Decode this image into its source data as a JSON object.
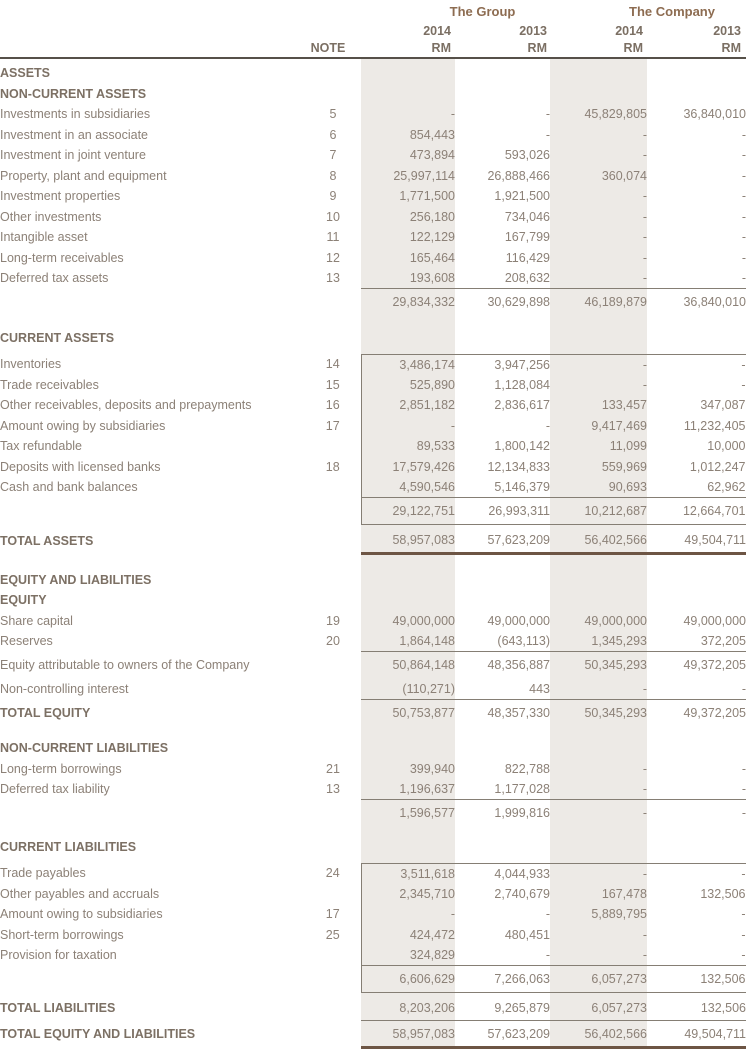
{
  "colors": {
    "column_shading": "#edeae6",
    "text_regular": "#8c8177",
    "text_bold": "#7c7064",
    "group_company_header": "#8d6c51",
    "thin_rule": "#857e74",
    "thick_rule": "#6d5544",
    "header_rule": "#565049"
  },
  "header": {
    "group": "The Group",
    "company": "The Company",
    "note_label": "NOTE",
    "years": {
      "group_2014": "2014",
      "group_2013": "2013",
      "company_2014": "2014",
      "company_2013": "2013"
    },
    "rm": {
      "group_2014": "RM",
      "group_2013": "RM",
      "company_2014": "RM",
      "company_2013": "RM"
    }
  },
  "rows": [
    {
      "t": "spacer",
      "h": 4
    },
    {
      "t": "section",
      "label": "ASSETS"
    },
    {
      "t": "section",
      "label": "NON-CURRENT ASSETS"
    },
    {
      "t": "item",
      "label": "Investments in subsidiaries",
      "note": "5",
      "v": [
        "-",
        "-",
        "45,829,805",
        "36,840,010"
      ]
    },
    {
      "t": "item",
      "label": "Investment in an associate",
      "note": "6",
      "v": [
        "854,443",
        "-",
        "-",
        "-"
      ]
    },
    {
      "t": "item",
      "label": "Investment in joint venture",
      "note": "7",
      "v": [
        "473,894",
        "593,026",
        "-",
        "-"
      ]
    },
    {
      "t": "item",
      "label": "Property, plant and equipment",
      "note": "8",
      "v": [
        "25,997,114",
        "26,888,466",
        "360,074",
        "-"
      ]
    },
    {
      "t": "item",
      "label": "Investment properties",
      "note": "9",
      "v": [
        "1,771,500",
        "1,921,500",
        "-",
        "-"
      ]
    },
    {
      "t": "item",
      "label": "Other investments",
      "note": "10",
      "v": [
        "256,180",
        "734,046",
        "-",
        "-"
      ]
    },
    {
      "t": "item",
      "label": "Intangible asset",
      "note": "11",
      "v": [
        "122,129",
        "167,799",
        "-",
        "-"
      ]
    },
    {
      "t": "item",
      "label": "Long-term receivables",
      "note": "12",
      "v": [
        "165,464",
        "116,429",
        "-",
        "-"
      ]
    },
    {
      "t": "item",
      "label": "Deferred tax assets",
      "note": "13",
      "v": [
        "193,608",
        "208,632",
        "-",
        "-"
      ]
    },
    {
      "t": "subtotal",
      "v": [
        "29,834,332",
        "30,629,898",
        "46,189,879",
        "36,840,010"
      ]
    },
    {
      "t": "spacer",
      "h": 12
    },
    {
      "t": "section",
      "label": "CURRENT ASSETS"
    },
    {
      "t": "spacer",
      "h": 6
    },
    {
      "t": "item",
      "label": "Inventories",
      "note": "14",
      "v": [
        "3,486,174",
        "3,947,256",
        "-",
        "-"
      ],
      "boxed": true,
      "boxStart": true
    },
    {
      "t": "item",
      "label": "Trade receivables",
      "note": "15",
      "v": [
        "525,890",
        "1,128,084",
        "-",
        "-"
      ],
      "boxed": true
    },
    {
      "t": "item",
      "label": "Other receivables, deposits and prepayments",
      "note": "16",
      "v": [
        "2,851,182",
        "2,836,617",
        "133,457",
        "347,087"
      ],
      "boxed": true
    },
    {
      "t": "item",
      "label": "Amount owing by subsidiaries",
      "note": "17",
      "v": [
        "-",
        "-",
        "9,417,469",
        "11,232,405"
      ],
      "boxed": true
    },
    {
      "t": "item",
      "label": "Tax refundable",
      "v": [
        "89,533",
        "1,800,142",
        "11,099",
        "10,000"
      ],
      "boxed": true
    },
    {
      "t": "item",
      "label": "Deposits with licensed banks",
      "note": "18",
      "v": [
        "17,579,426",
        "12,134,833",
        "559,969",
        "1,012,247"
      ],
      "boxed": true
    },
    {
      "t": "item",
      "label": "Cash and bank balances",
      "v": [
        "4,590,546",
        "5,146,379",
        "90,693",
        "62,962"
      ],
      "boxed": true
    },
    {
      "t": "subtotal",
      "v": [
        "29,122,751",
        "26,993,311",
        "10,212,687",
        "12,664,701"
      ],
      "boxed": true,
      "boxEnd": true
    },
    {
      "t": "spacer",
      "h": 4
    },
    {
      "t": "total",
      "label": "TOTAL ASSETS",
      "v": [
        "58,957,083",
        "57,623,209",
        "56,402,566",
        "49,504,711"
      ],
      "thick": true
    },
    {
      "t": "spacer",
      "h": 16
    },
    {
      "t": "section",
      "label": "EQUITY AND LIABILITIES"
    },
    {
      "t": "section",
      "label": "EQUITY"
    },
    {
      "t": "item",
      "label": "Share capital",
      "note": "19",
      "v": [
        "49,000,000",
        "49,000,000",
        "49,000,000",
        "49,000,000"
      ]
    },
    {
      "t": "item",
      "label": "Reserves",
      "note": "20",
      "v": [
        "1,864,148",
        "(643,113)",
        "1,345,293",
        "372,205"
      ]
    },
    {
      "t": "item",
      "label": "Equity attributable to owners of the Company",
      "v": [
        "50,864,148",
        "48,356,887",
        "50,345,293",
        "49,372,205"
      ],
      "topline": true,
      "tall": true
    },
    {
      "t": "item",
      "label": "Non-controlling interest",
      "v": [
        "(110,271)",
        "443",
        "-",
        "-"
      ]
    },
    {
      "t": "total",
      "label": "TOTAL EQUITY",
      "v": [
        "50,753,877",
        "48,357,330",
        "50,345,293",
        "49,372,205"
      ],
      "topline": true,
      "tall": true
    },
    {
      "t": "spacer",
      "h": 12
    },
    {
      "t": "section",
      "label": "NON-CURRENT LIABILITIES"
    },
    {
      "t": "item",
      "label": "Long-term borrowings",
      "note": "21",
      "v": [
        "399,940",
        "822,788",
        "-",
        "-"
      ]
    },
    {
      "t": "item",
      "label": "Deferred tax liability",
      "note": "13",
      "v": [
        "1,196,637",
        "1,177,028",
        "-",
        "-"
      ]
    },
    {
      "t": "subtotal",
      "v": [
        "1,596,577",
        "1,999,816",
        "-",
        "-"
      ]
    },
    {
      "t": "spacer",
      "h": 10
    },
    {
      "t": "section",
      "label": "CURRENT LIABILITIES"
    },
    {
      "t": "spacer",
      "h": 6
    },
    {
      "t": "item",
      "label": "Trade payables",
      "note": "24",
      "v": [
        "3,511,618",
        "4,044,933",
        "-",
        "-"
      ],
      "boxed": true,
      "boxStart": true
    },
    {
      "t": "item",
      "label": "Other payables and accruals",
      "v": [
        "2,345,710",
        "2,740,679",
        "167,478",
        "132,506"
      ],
      "boxed": true
    },
    {
      "t": "item",
      "label": "Amount owing to subsidiaries",
      "note": "17",
      "v": [
        "-",
        "-",
        "5,889,795",
        "-"
      ],
      "boxed": true
    },
    {
      "t": "item",
      "label": "Short-term borrowings",
      "note": "25",
      "v": [
        "424,472",
        "480,451",
        "-",
        "-"
      ],
      "boxed": true
    },
    {
      "t": "item",
      "label": "Provision for taxation",
      "v": [
        "324,829",
        "-",
        "-",
        "-"
      ],
      "boxed": true
    },
    {
      "t": "subtotal",
      "v": [
        "6,606,629",
        "7,266,063",
        "6,057,273",
        "132,506"
      ],
      "boxed": true,
      "boxEnd": true
    },
    {
      "t": "spacer",
      "h": 3
    },
    {
      "t": "total",
      "label": "TOTAL LIABILITIES",
      "v": [
        "8,203,206",
        "9,265,879",
        "6,057,273",
        "132,506"
      ]
    },
    {
      "t": "total",
      "label": "TOTAL EQUITY AND LIABILITIES",
      "v": [
        "58,957,083",
        "57,623,209",
        "56,402,566",
        "49,504,711"
      ],
      "topline": true,
      "thick": true,
      "tall": true
    }
  ]
}
